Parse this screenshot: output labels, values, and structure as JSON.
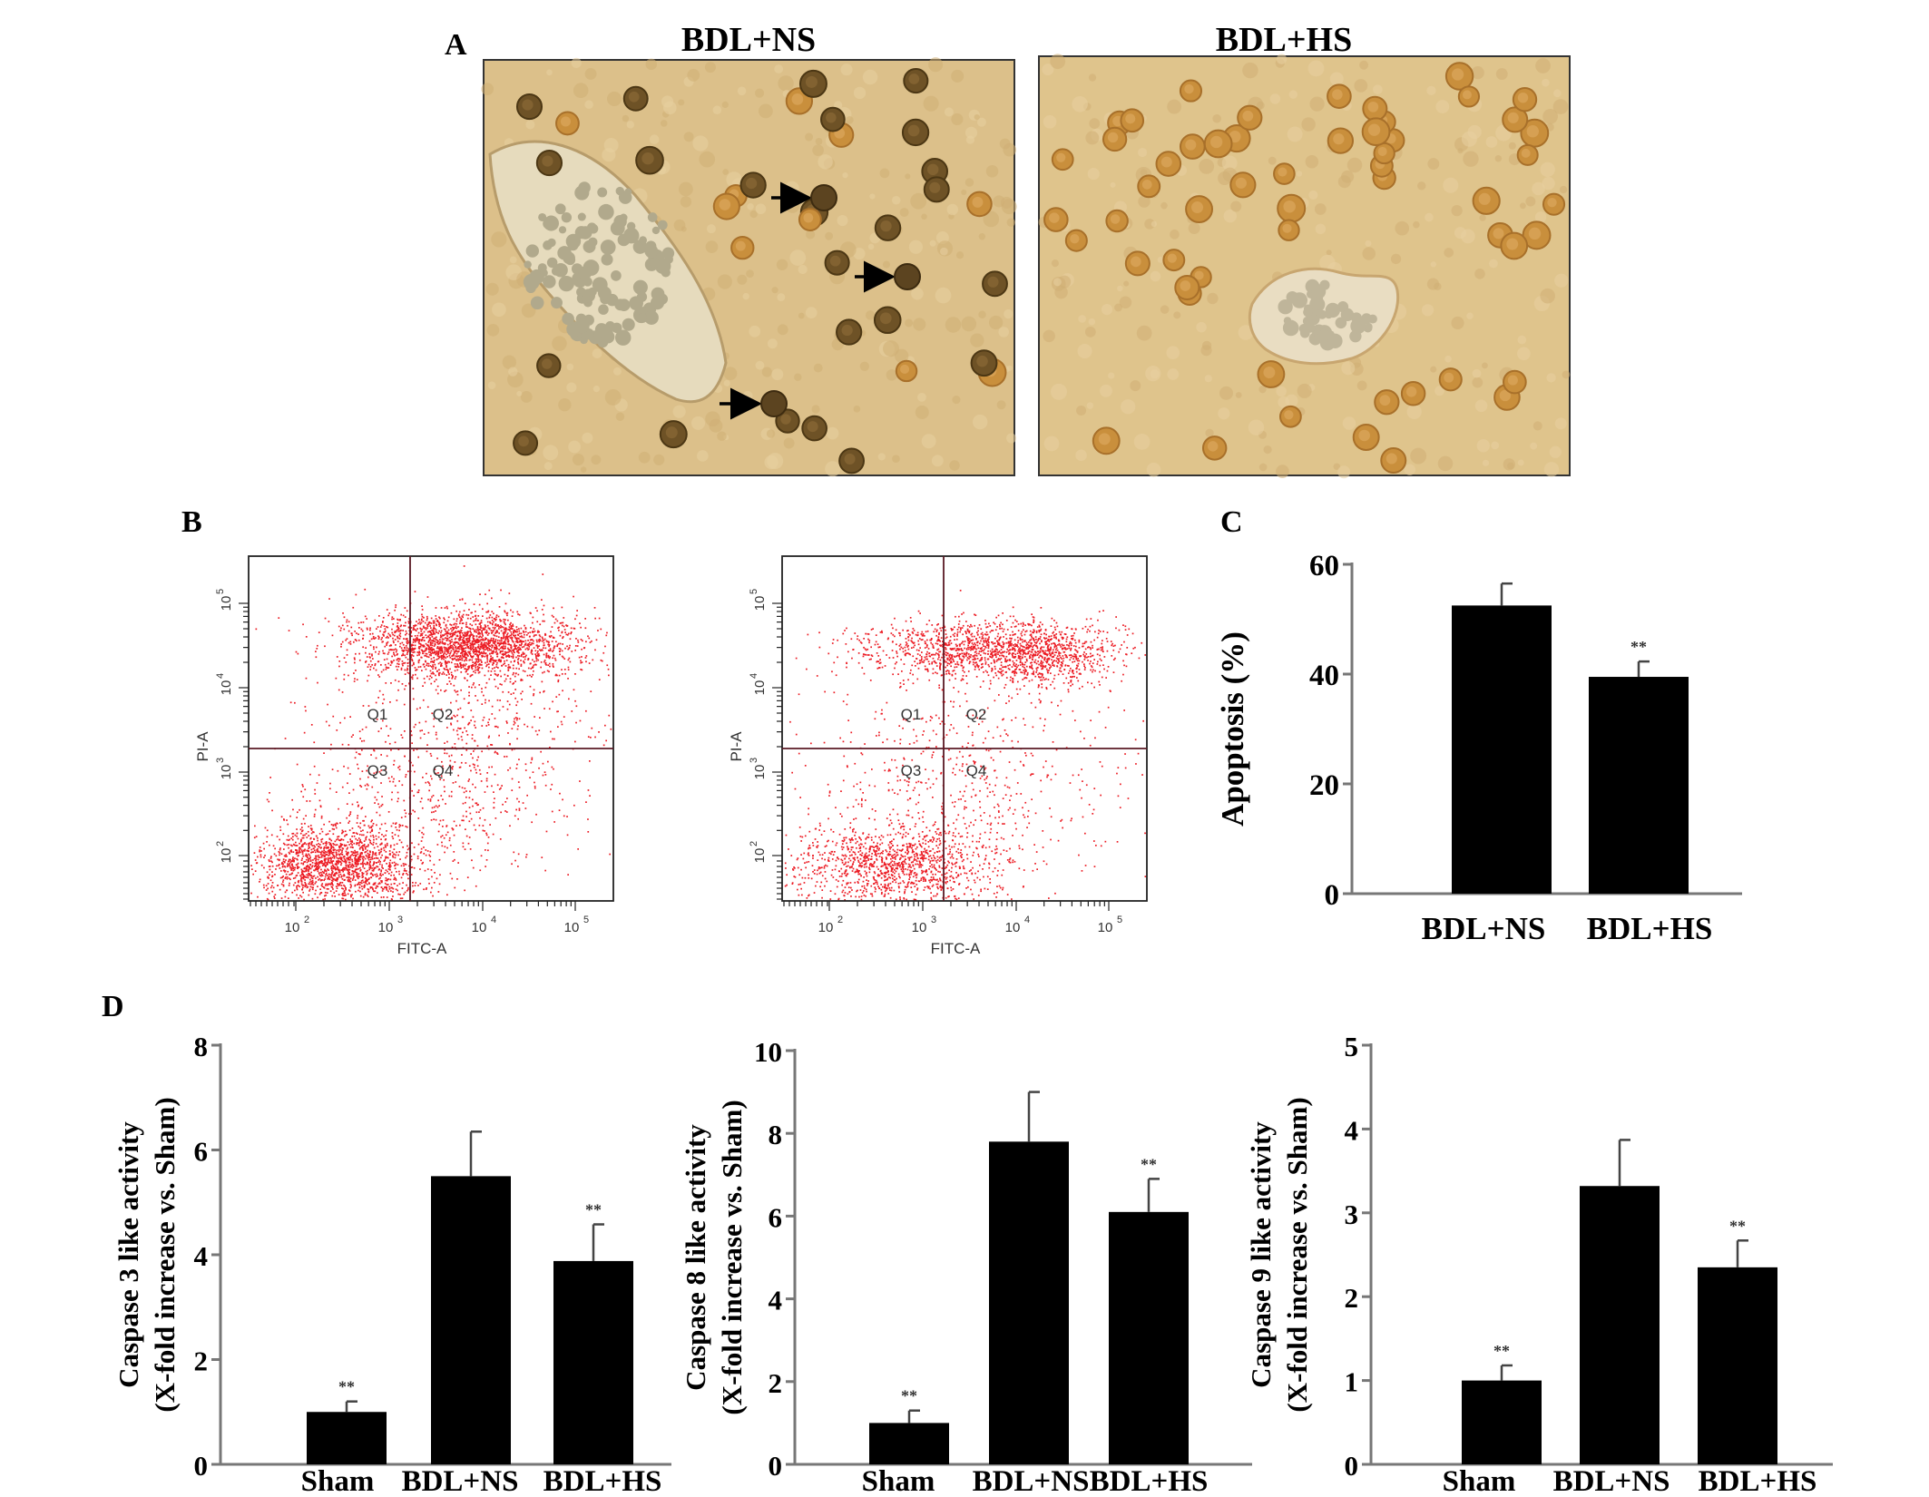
{
  "panels": {
    "A": {
      "letter": "A",
      "images": [
        {
          "label": "BDL+NS",
          "arrow_count": 3
        },
        {
          "label": "BDL+HS",
          "arrow_count": 0
        }
      ],
      "colors": {
        "tissue": "#dcc08a",
        "nucleus_stained": "#6e5226",
        "nucleus_light": "#c98f3c",
        "vessel": "#e8dcc0"
      }
    },
    "B": {
      "letter": "B",
      "plots": [
        {
          "xlabel": "FITC-A",
          "ylabel": "PI-A",
          "quadrants": [
            "Q1",
            "Q2",
            "Q3",
            "Q4"
          ],
          "x_ticks": [
            "10",
            "10",
            "10",
            "10"
          ],
          "x_exps": [
            "2",
            "3",
            "4",
            "5"
          ],
          "y_ticks": [
            "10",
            "10",
            "10",
            "10"
          ],
          "y_exps": [
            "2",
            "3",
            "4",
            "5"
          ]
        },
        {
          "xlabel": "FITC-A",
          "ylabel": "PI-A",
          "quadrants": [
            "Q1",
            "Q2",
            "Q3",
            "Q4"
          ],
          "x_ticks": [
            "10",
            "10",
            "10",
            "10"
          ],
          "x_exps": [
            "2",
            "3",
            "4",
            "5"
          ],
          "y_ticks": [
            "10",
            "10",
            "10",
            "10"
          ],
          "y_exps": [
            "2",
            "3",
            "4",
            "5"
          ]
        }
      ],
      "dot_color": "#ec1c24"
    },
    "D": {
      "letter": "D"
    }
  },
  "chart_data": [
    {
      "id": "C",
      "letter": "C",
      "type": "bar",
      "categories": [
        "BDL+NS",
        "BDL+HS"
      ],
      "values": [
        52.5,
        39.5
      ],
      "errors": [
        4,
        2.8
      ],
      "significance": [
        "",
        "**"
      ],
      "ylabel": [
        "Apoptosis (%)"
      ],
      "ylim": [
        0,
        60
      ],
      "yticks": [
        0,
        20,
        40,
        60
      ],
      "bar_color": "#000000"
    },
    {
      "id": "D1",
      "type": "bar",
      "categories": [
        "Sham",
        "BDL+NS",
        "BDL+HS"
      ],
      "values": [
        1.0,
        5.5,
        3.88
      ],
      "errors": [
        0.2,
        0.85,
        0.7
      ],
      "significance": [
        "**",
        "",
        "**"
      ],
      "ylabel": [
        "Caspase 3 like activity",
        "(X-fold increase vs. Sham)"
      ],
      "ylim": [
        0,
        8
      ],
      "yticks": [
        0,
        2,
        4,
        6,
        8
      ],
      "bar_color": "#000000"
    },
    {
      "id": "D2",
      "type": "bar",
      "categories": [
        "Sham",
        "BDL+NS",
        "BDL+HS"
      ],
      "values": [
        1.0,
        7.8,
        6.1
      ],
      "errors": [
        0.3,
        1.2,
        0.8
      ],
      "significance": [
        "**",
        "",
        "**"
      ],
      "ylabel": [
        "Caspase 8 like activity",
        "(X-fold increase vs. Sham)"
      ],
      "ylim": [
        0,
        10
      ],
      "yticks": [
        0,
        2,
        4,
        6,
        8,
        10
      ],
      "bar_color": "#000000"
    },
    {
      "id": "D3",
      "type": "bar",
      "categories": [
        "Sham",
        "BDL+NS",
        "BDL+HS"
      ],
      "values": [
        1.0,
        3.32,
        2.35
      ],
      "errors": [
        0.18,
        0.55,
        0.32
      ],
      "significance": [
        "**",
        "",
        "**"
      ],
      "ylabel": [
        "Caspase 9 like activity",
        "(X-fold increase vs. Sham)"
      ],
      "ylim": [
        0,
        5
      ],
      "yticks": [
        0,
        1,
        2,
        3,
        4,
        5
      ],
      "bar_color": "#000000"
    }
  ]
}
